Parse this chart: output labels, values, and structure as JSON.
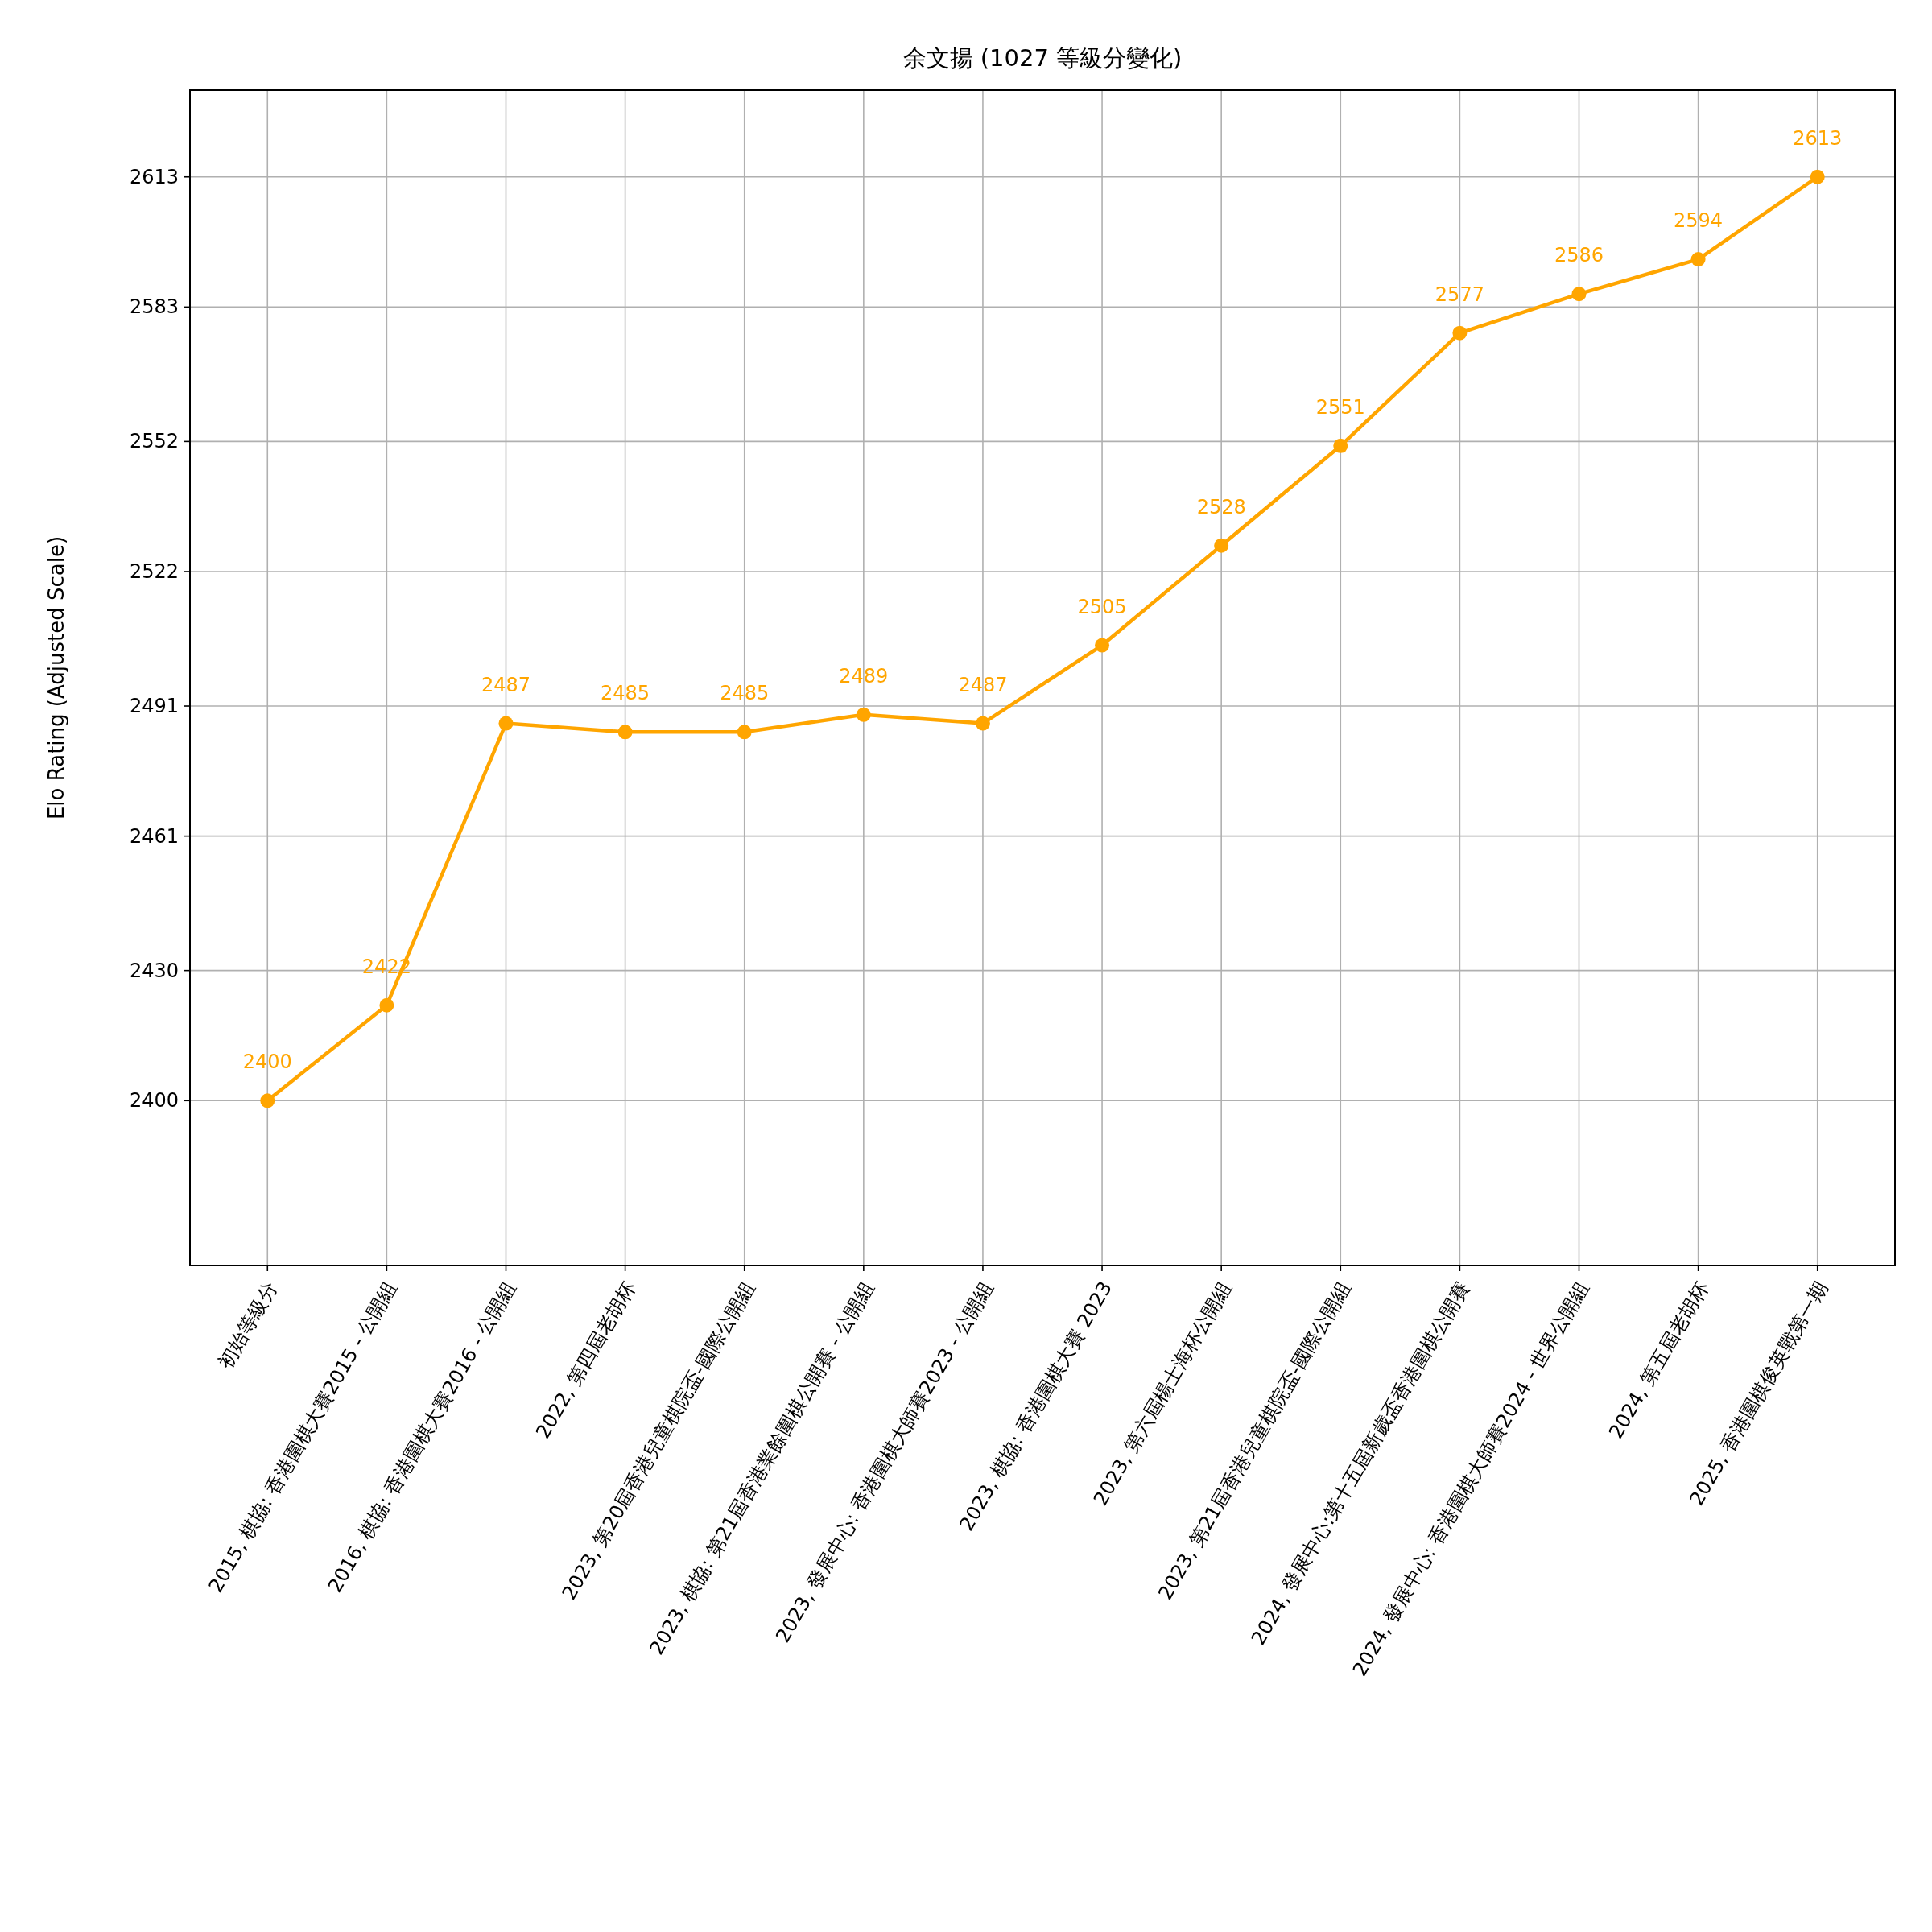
{
  "chart_data": {
    "type": "line",
    "title": "余文揚 (1027 等級分變化)",
    "ylabel": "Elo Rating (Adjusted Scale)",
    "categories": [
      "初始等級分",
      "2015, 棋協: 香港圍棋大賽2015 - 公開組",
      "2016, 棋協: 香港圍棋大賽2016 - 公開組",
      "2022, 第四屆老胡杯",
      "2023, 第20屆香港兒童棋院盃-國際公開組",
      "2023, 棋協: 第21屆香港業餘圍棋公開賽 - 公開組",
      "2023, 發展中心: 香港圍棋大師賽2023 - 公開組",
      "2023, 棋協: 香港圍棋大賽 2023",
      "2023, 第六屆楊士海杯公開組",
      "2023, 第21屆香港兒童棋院盃-國際公開組",
      "2024, 發展中心:第十五屆新歲盃香港圍棋公開賽",
      "2024, 發展中心: 香港圍棋大師賽2024 - 世界公開組",
      "2024, 第五屆老胡杯",
      "2025, 香港圍棋俊英戰第一期"
    ],
    "series": [
      {
        "color": "#ffa500",
        "values": [
          2400,
          2422,
          2487,
          2485,
          2485,
          2489,
          2487,
          2505,
          2528,
          2551,
          2577,
          2586,
          2594,
          2613
        ]
      }
    ],
    "ylim": [
      2362,
      2633
    ],
    "yticks": [
      2400,
      2430,
      2461,
      2491,
      2522,
      2552,
      2583,
      2613
    ],
    "grid": true,
    "marker": "circle",
    "line_style": "solid",
    "data_labels": true
  }
}
